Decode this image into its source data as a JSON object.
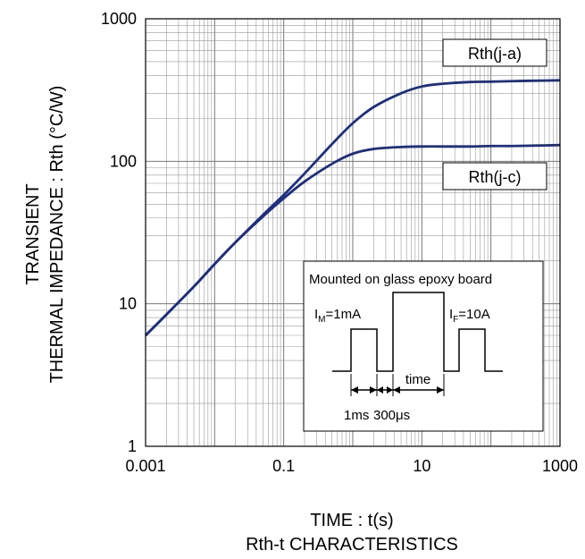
{
  "chart_data": {
    "type": "line",
    "x_scale": "log",
    "y_scale": "log",
    "xlim": [
      0.001,
      1000
    ],
    "ylim": [
      1,
      1000
    ],
    "x_ticks": [
      0.001,
      0.01,
      0.1,
      1,
      10,
      100,
      1000
    ],
    "y_ticks": [
      1,
      10,
      100,
      1000
    ],
    "x_tick_labels": [
      "0.001",
      "0.1",
      "10",
      "1000"
    ],
    "x_tick_label_values": [
      0.001,
      0.1,
      10,
      1000
    ],
    "y_tick_labels": [
      "1",
      "10",
      "100",
      "1000"
    ],
    "y_tick_label_values": [
      1,
      10,
      100,
      1000
    ],
    "grid": true,
    "xlabel": "TIME : t(s)",
    "ylabel": [
      "TRANSIENT",
      "THERMAL IMPEDANCE : Rth (°C/W)"
    ],
    "caption": "Rth-t CHARACTERISTICS",
    "line_color": "#1f2f80",
    "series": [
      {
        "name": "Rth(j-a)",
        "x": [
          0.001,
          0.002,
          0.005,
          0.01,
          0.02,
          0.05,
          0.1,
          0.2,
          0.5,
          1,
          2,
          5,
          10,
          20,
          50,
          100,
          200,
          500,
          1000
        ],
        "y": [
          6,
          8.4,
          13.2,
          19,
          27,
          42,
          58,
          82,
          132,
          185,
          240,
          300,
          335,
          350,
          360,
          362,
          365,
          368,
          370
        ]
      },
      {
        "name": "Rth(j-c)",
        "x": [
          0.001,
          0.002,
          0.005,
          0.01,
          0.02,
          0.05,
          0.1,
          0.2,
          0.5,
          1,
          2,
          5,
          10,
          20,
          50,
          100,
          200,
          500,
          1000
        ],
        "y": [
          6,
          8.4,
          13.2,
          19,
          27,
          41,
          55,
          72,
          96,
          113,
          122,
          126,
          127,
          127,
          127,
          128,
          128,
          129,
          130
        ]
      }
    ],
    "annotations": {
      "label_ja": "Rth(j-a)",
      "label_jc": "Rth(j-c)",
      "inset": {
        "title": "Mounted on glass epoxy board",
        "im_main": "I",
        "im_sub": "M",
        "im_val": "=1mA",
        "if_main": "I",
        "if_sub": "F",
        "if_val": "=10A",
        "time": "time",
        "t1": "1ms",
        "t2": "300μs"
      }
    }
  }
}
